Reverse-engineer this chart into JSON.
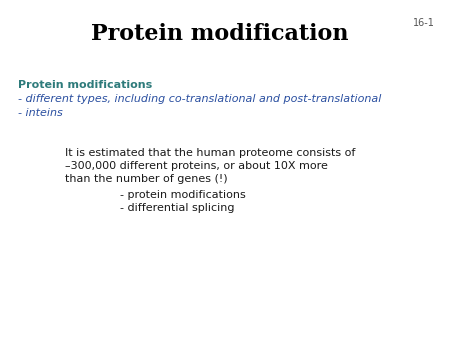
{
  "title": "Protein modification",
  "title_fontsize": 16,
  "title_color": "#000000",
  "title_weight": "bold",
  "slide_number": "16-1",
  "slide_number_fontsize": 7,
  "slide_number_color": "#555555",
  "background_color": "#ffffff",
  "heading_text": "Protein modifications",
  "heading_color": "#2e7b7b",
  "heading_fontsize": 8,
  "heading_weight": "bold",
  "bullet1_text": "- different types, including co-translational and post-translational",
  "bullet1_color": "#2a4fa0",
  "bullet1_fontsize": 8,
  "bullet1_style": "italic",
  "bullet2_text": "- inteins",
  "bullet2_color": "#2a4fa0",
  "bullet2_fontsize": 8,
  "bullet2_style": "italic",
  "body_line1": "It is estimated that the human proteome consists of",
  "body_line2": "–300,000 different proteins, or about 10X more",
  "body_line3": "than the number of genes (!)",
  "body_fontsize": 8,
  "body_color": "#1a1a1a",
  "sub_bullet1": "- protein modifications",
  "sub_bullet2": "- differential splicing",
  "sub_bullet_fontsize": 8,
  "sub_bullet_color": "#1a1a1a"
}
